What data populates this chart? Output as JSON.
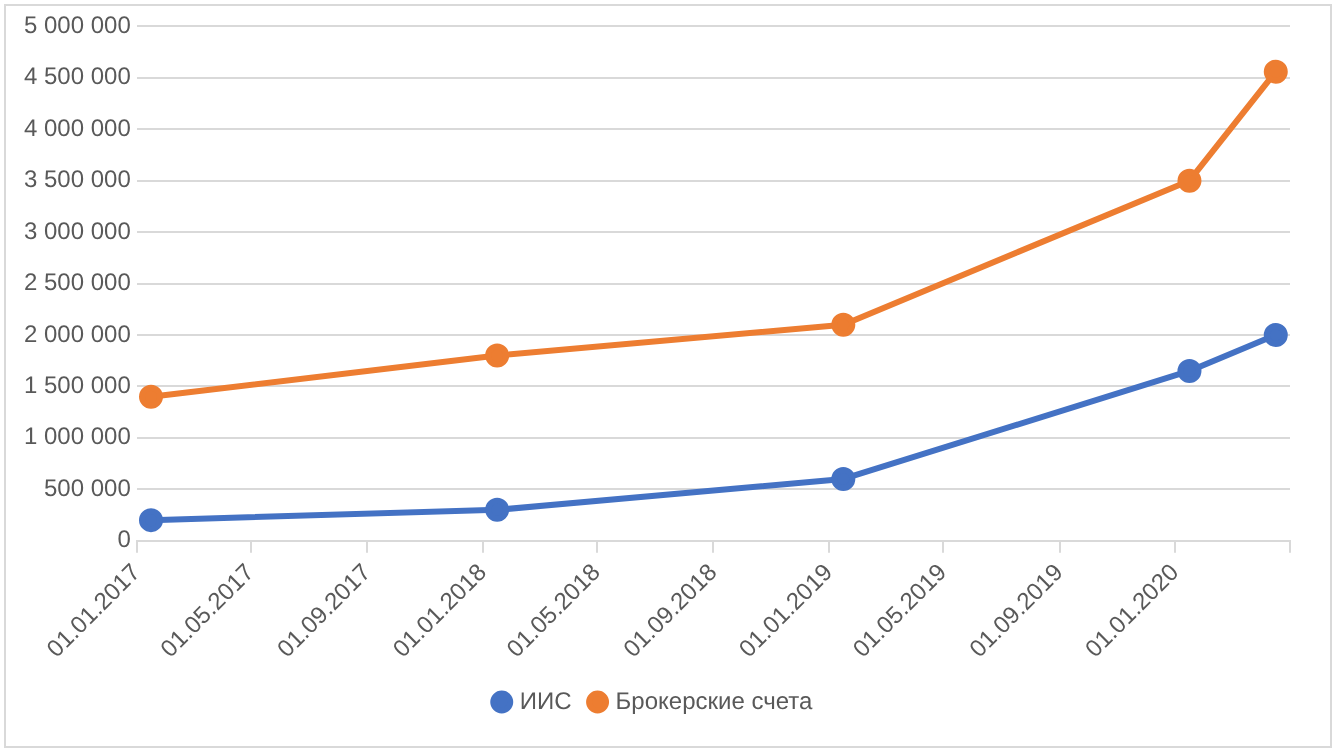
{
  "chart_data": {
    "type": "line",
    "series": [
      {
        "name": "ИИС",
        "color": "#4472c4",
        "x": [
          "2017-01-16",
          "2018-01-16",
          "2019-01-16",
          "2020-01-16",
          "2020-04-16"
        ],
        "values": [
          200000,
          300000,
          600000,
          1650000,
          2000000
        ]
      },
      {
        "name": "Брокерские счета",
        "color": "#ed7d31",
        "x": [
          "2017-01-16",
          "2018-01-16",
          "2019-01-16",
          "2020-01-16",
          "2020-04-16"
        ],
        "values": [
          1400000,
          1800000,
          2100000,
          3500000,
          4560000
        ]
      }
    ],
    "xlim": [
      "2017-01-01",
      "2020-05-01"
    ],
    "xticks": [
      {
        "value": "2017-01-01",
        "label": "01.01.2017"
      },
      {
        "value": "2017-05-01",
        "label": "01.05.2017"
      },
      {
        "value": "2017-09-01",
        "label": "01.09.2017"
      },
      {
        "value": "2018-01-01",
        "label": "01.01.2018"
      },
      {
        "value": "2018-05-01",
        "label": "01.05.2018"
      },
      {
        "value": "2018-09-01",
        "label": "01.09.2018"
      },
      {
        "value": "2019-01-01",
        "label": "01.01.2019"
      },
      {
        "value": "2019-05-01",
        "label": "01.05.2019"
      },
      {
        "value": "2019-09-01",
        "label": "01.09.2019"
      },
      {
        "value": "2020-01-01",
        "label": "01.01.2020"
      },
      {
        "value": "2020-05-01",
        "label": null
      }
    ],
    "ylim": [
      0,
      5000000
    ],
    "yticks": [
      {
        "value": 0,
        "label": "0"
      },
      {
        "value": 500000,
        "label": "500 000"
      },
      {
        "value": 1000000,
        "label": "1 000 000"
      },
      {
        "value": 1500000,
        "label": "1 500 000"
      },
      {
        "value": 2000000,
        "label": "2 000 000"
      },
      {
        "value": 2500000,
        "label": "2 500 000"
      },
      {
        "value": 3000000,
        "label": "3 000 000"
      },
      {
        "value": 3500000,
        "label": "3 500 000"
      },
      {
        "value": 4000000,
        "label": "4 000 000"
      },
      {
        "value": 4500000,
        "label": "4 500 000"
      },
      {
        "value": 5000000,
        "label": "5 000 000"
      }
    ],
    "grid": "y",
    "legend": "bottom",
    "marker": "circle",
    "line_style": "solid"
  }
}
